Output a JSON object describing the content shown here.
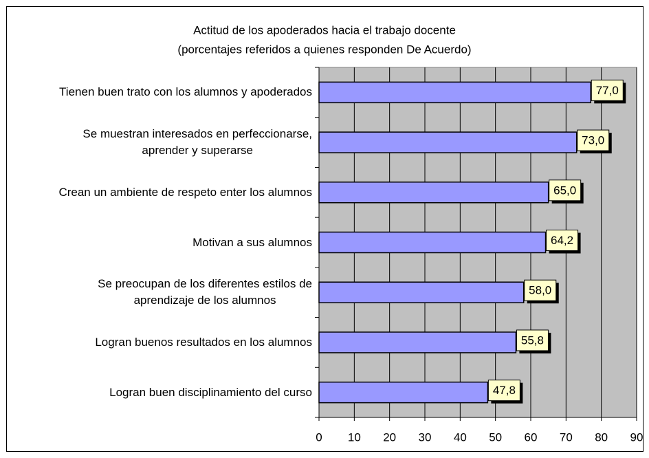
{
  "chart_data": {
    "type": "bar",
    "orientation": "horizontal",
    "title": "Actitud de los apoderados hacia el trabajo docente",
    "subtitle": "(porcentajes referidos a quienes responden De Acuerdo)",
    "categories": [
      "Tienen buen trato con los alumnos y apoderados",
      "Se muestran interesados en perfeccionarse,\naprender y superarse",
      "Crean un ambiente de respeto enter los alumnos",
      "Motivan a sus alumnos",
      "Se preocupan de los diferentes estilos de\naprendizaje de los alumnos",
      "Logran buenos resultados en los alumnos",
      "Logran buen disciplinamiento del curso"
    ],
    "values": [
      77,
      73,
      65,
      64.2,
      58,
      55.8,
      47.8
    ],
    "value_labels": [
      "77,0",
      "73,0",
      "65,0",
      "64,2",
      "58,0",
      "55,8",
      "47,8"
    ],
    "color": "#9999ff",
    "xlim": [
      0,
      90
    ],
    "xticks": [
      0,
      10,
      20,
      30,
      40,
      50,
      60,
      70,
      80,
      90
    ],
    "grid": true
  }
}
